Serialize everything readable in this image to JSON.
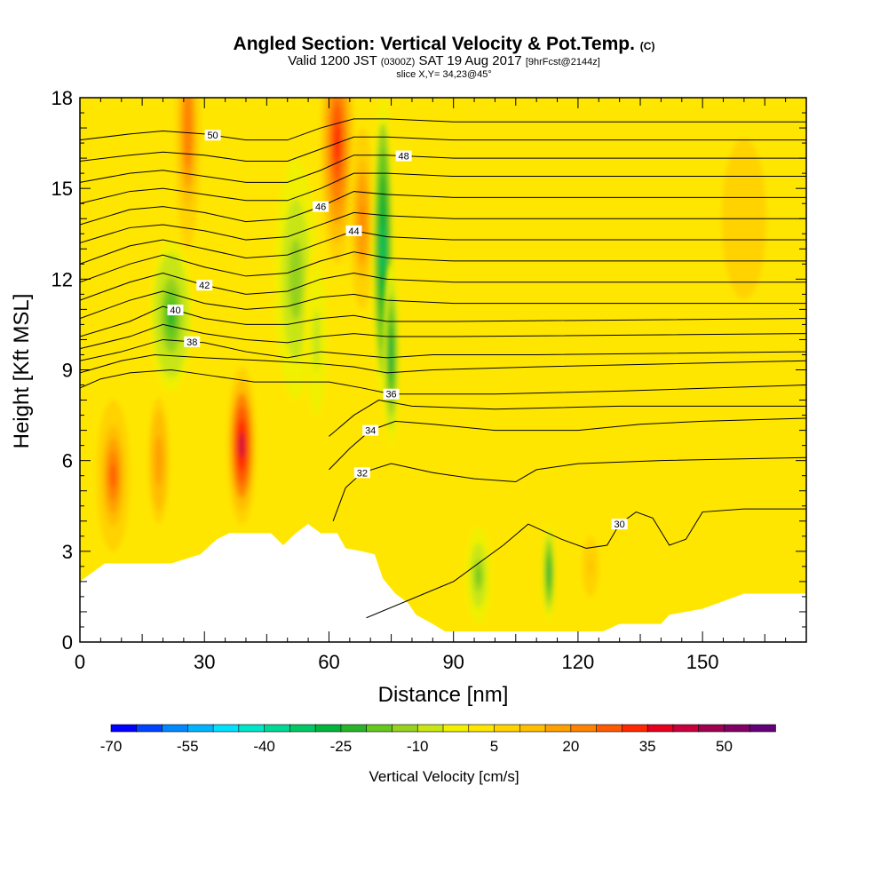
{
  "title": {
    "main": "Angled Section: Vertical Velocity & Pot.Temp.",
    "main_suffix": "(C)",
    "valid_prefix": "Valid 1200 JST",
    "valid_utc": "(0300Z)",
    "valid_date": "SAT 19 Aug 2017",
    "forecast": "[9hrFcst@2144z]",
    "slice": "slice X,Y= 34,23@45°"
  },
  "chart_data": {
    "type": "heatmap",
    "xlabel": "Distance [nm]",
    "ylabel": "Height [Kft MSL]",
    "xlim": [
      0,
      175
    ],
    "ylim": [
      0,
      18
    ],
    "xticks": [
      0,
      30,
      60,
      90,
      120,
      150
    ],
    "yticks": [
      0,
      3,
      6,
      9,
      12,
      15,
      18
    ],
    "colorbar": {
      "label": "Vertical Velocity [cm/s]",
      "tick_values": [
        -70,
        -55,
        -40,
        -25,
        -10,
        5,
        20,
        35,
        50
      ],
      "tick_labels": [
        "-70",
        "-55",
        "-40",
        "-25",
        "-10",
        "5",
        "20",
        "35",
        "50"
      ],
      "bins": [
        -70,
        -65,
        -60,
        -55,
        -50,
        -45,
        -40,
        -35,
        -30,
        -25,
        -20,
        -15,
        -10,
        -5,
        0,
        5,
        10,
        15,
        20,
        25,
        30,
        35,
        40,
        45,
        50,
        55
      ],
      "colors": [
        "#0000ff",
        "#0044ff",
        "#0088ff",
        "#00b4ff",
        "#00e0ff",
        "#00e6c8",
        "#00d896",
        "#00c864",
        "#00b43c",
        "#28b428",
        "#64c81e",
        "#96d21e",
        "#c8e614",
        "#f0f000",
        "#ffe600",
        "#ffd200",
        "#ffbe00",
        "#ffa000",
        "#ff8200",
        "#ff5a00",
        "#ff2800",
        "#e6001e",
        "#c8003c",
        "#a00050",
        "#820064",
        "#640078"
      ]
    },
    "background_value": 2,
    "velocity_cells": [
      {
        "x": 8,
        "y": 5.5,
        "sx": 4,
        "sy": 2.5,
        "v": 25
      },
      {
        "x": 19,
        "y": 6,
        "sx": 3,
        "sy": 2.5,
        "v": 18
      },
      {
        "x": 22,
        "y": 10.8,
        "sx": 5,
        "sy": 2.5,
        "v": -22
      },
      {
        "x": 26,
        "y": 17,
        "sx": 3,
        "sy": 4,
        "v": 24
      },
      {
        "x": 39,
        "y": 6.5,
        "sx": 3.5,
        "sy": 2.6,
        "v": 40
      },
      {
        "x": 52,
        "y": 12,
        "sx": 5,
        "sy": 4,
        "v": -14
      },
      {
        "x": 57,
        "y": 10,
        "sx": 3,
        "sy": 3,
        "v": -8
      },
      {
        "x": 62,
        "y": 16.5,
        "sx": 4,
        "sy": 4,
        "v": 34
      },
      {
        "x": 68,
        "y": 14,
        "sx": 3,
        "sy": 3,
        "v": 22
      },
      {
        "x": 73,
        "y": 13,
        "sx": 2.5,
        "sy": 5,
        "v": -35
      },
      {
        "x": 75,
        "y": 9.5,
        "sx": 2,
        "sy": 3,
        "v": -26
      },
      {
        "x": 96,
        "y": 2.2,
        "sx": 3,
        "sy": 1.6,
        "v": -16
      },
      {
        "x": 113,
        "y": 2.3,
        "sx": 1.5,
        "sy": 1.6,
        "v": -30
      },
      {
        "x": 123,
        "y": 2.5,
        "sx": 3,
        "sy": 1.5,
        "v": 10
      },
      {
        "x": 160,
        "y": 14,
        "sx": 8,
        "sy": 4,
        "v": 9
      }
    ],
    "terrain_kft": [
      [
        0,
        2.0
      ],
      [
        3,
        2.3
      ],
      [
        6,
        2.6
      ],
      [
        14,
        2.6
      ],
      [
        22,
        2.6
      ],
      [
        29,
        2.9
      ],
      [
        33,
        3.4
      ],
      [
        36,
        3.6
      ],
      [
        46,
        3.6
      ],
      [
        49,
        3.2
      ],
      [
        52,
        3.6
      ],
      [
        55,
        3.9
      ],
      [
        58,
        3.6
      ],
      [
        62,
        3.6
      ],
      [
        64,
        3.1
      ],
      [
        68,
        3.0
      ],
      [
        71,
        2.9
      ],
      [
        73,
        2.1
      ],
      [
        76,
        1.6
      ],
      [
        79,
        1.3
      ],
      [
        81,
        0.9
      ],
      [
        85,
        0.6
      ],
      [
        88,
        0.35
      ],
      [
        96,
        0.35
      ],
      [
        110,
        0.35
      ],
      [
        126,
        0.35
      ],
      [
        130,
        0.6
      ],
      [
        140,
        0.6
      ],
      [
        142,
        0.9
      ],
      [
        150,
        1.1
      ],
      [
        154,
        1.3
      ],
      [
        160,
        1.6
      ],
      [
        175,
        1.6
      ]
    ],
    "theta_contours": [
      {
        "level": 30,
        "label": "30",
        "label_x": 130,
        "points": [
          [
            69,
            0.8
          ],
          [
            90,
            2.0
          ],
          [
            102,
            3.2
          ],
          [
            108,
            3.9
          ],
          [
            116,
            3.4
          ],
          [
            122,
            3.1
          ],
          [
            127,
            3.2
          ],
          [
            130,
            3.9
          ],
          [
            134,
            4.3
          ],
          [
            138,
            4.1
          ],
          [
            142,
            3.2
          ],
          [
            146,
            3.4
          ],
          [
            150,
            4.3
          ],
          [
            160,
            4.4
          ],
          [
            175,
            4.4
          ]
        ]
      },
      {
        "level": 32,
        "label": "32",
        "label_x": 68,
        "points": [
          [
            61,
            4.0
          ],
          [
            64,
            5.1
          ],
          [
            68,
            5.6
          ],
          [
            75,
            5.9
          ],
          [
            85,
            5.6
          ],
          [
            95,
            5.4
          ],
          [
            105,
            5.3
          ],
          [
            110,
            5.7
          ],
          [
            120,
            5.9
          ],
          [
            140,
            6.0
          ],
          [
            175,
            6.1
          ]
        ]
      },
      {
        "level": 34,
        "label": "34",
        "label_x": 70,
        "points": [
          [
            60,
            5.7
          ],
          [
            65,
            6.4
          ],
          [
            70,
            7.0
          ],
          [
            76,
            7.3
          ],
          [
            85,
            7.2
          ],
          [
            100,
            7.0
          ],
          [
            120,
            7.0
          ],
          [
            135,
            7.2
          ],
          [
            150,
            7.3
          ],
          [
            175,
            7.4
          ]
        ]
      },
      {
        "level": 35,
        "label": "",
        "label_x": 0,
        "points": [
          [
            60,
            6.8
          ],
          [
            66,
            7.5
          ],
          [
            72,
            8.0
          ],
          [
            80,
            7.8
          ],
          [
            100,
            7.7
          ],
          [
            130,
            7.8
          ],
          [
            175,
            7.8
          ]
        ]
      },
      {
        "level": 36,
        "label": "36",
        "label_x": 75,
        "points": [
          [
            0,
            8.4
          ],
          [
            5,
            8.7
          ],
          [
            12,
            8.9
          ],
          [
            22,
            9.0
          ],
          [
            32,
            8.8
          ],
          [
            42,
            8.6
          ],
          [
            52,
            8.6
          ],
          [
            60,
            8.6
          ],
          [
            68,
            8.4
          ],
          [
            75,
            8.2
          ],
          [
            85,
            8.2
          ],
          [
            100,
            8.2
          ],
          [
            130,
            8.3
          ],
          [
            175,
            8.5
          ]
        ]
      },
      {
        "level": 37,
        "label": "",
        "label_x": 0,
        "points": [
          [
            0,
            8.9
          ],
          [
            10,
            9.3
          ],
          [
            18,
            9.5
          ],
          [
            30,
            9.4
          ],
          [
            45,
            9.3
          ],
          [
            58,
            9.2
          ],
          [
            66,
            9.1
          ],
          [
            74,
            8.9
          ],
          [
            85,
            9.0
          ],
          [
            110,
            9.1
          ],
          [
            175,
            9.3
          ]
        ]
      },
      {
        "level": 38,
        "label": "38",
        "label_x": 27,
        "points": [
          [
            0,
            9.3
          ],
          [
            10,
            9.6
          ],
          [
            20,
            10.0
          ],
          [
            30,
            9.9
          ],
          [
            40,
            9.6
          ],
          [
            50,
            9.4
          ],
          [
            58,
            9.6
          ],
          [
            66,
            9.5
          ],
          [
            74,
            9.4
          ],
          [
            85,
            9.5
          ],
          [
            110,
            9.5
          ],
          [
            175,
            9.6
          ]
        ]
      },
      {
        "level": 39,
        "label": "",
        "label_x": 0,
        "points": [
          [
            0,
            9.7
          ],
          [
            12,
            10.1
          ],
          [
            20,
            10.5
          ],
          [
            30,
            10.2
          ],
          [
            40,
            10.0
          ],
          [
            50,
            9.9
          ],
          [
            58,
            10.1
          ],
          [
            66,
            10.2
          ],
          [
            74,
            10.1
          ],
          [
            90,
            10.1
          ],
          [
            175,
            10.2
          ]
        ]
      },
      {
        "level": 40,
        "label": "40",
        "label_x": 23,
        "points": [
          [
            0,
            10.1
          ],
          [
            12,
            10.6
          ],
          [
            20,
            11.1
          ],
          [
            30,
            10.7
          ],
          [
            40,
            10.5
          ],
          [
            50,
            10.5
          ],
          [
            58,
            10.7
          ],
          [
            66,
            10.8
          ],
          [
            74,
            10.6
          ],
          [
            90,
            10.6
          ],
          [
            175,
            10.7
          ]
        ]
      },
      {
        "level": 41,
        "label": "",
        "label_x": 0,
        "points": [
          [
            0,
            10.7
          ],
          [
            12,
            11.3
          ],
          [
            20,
            11.6
          ],
          [
            30,
            11.2
          ],
          [
            40,
            11.0
          ],
          [
            50,
            11.1
          ],
          [
            58,
            11.4
          ],
          [
            66,
            11.5
          ],
          [
            74,
            11.3
          ],
          [
            90,
            11.2
          ],
          [
            175,
            11.2
          ]
        ]
      },
      {
        "level": 42,
        "label": "42",
        "label_x": 30,
        "points": [
          [
            0,
            11.3
          ],
          [
            12,
            11.9
          ],
          [
            20,
            12.2
          ],
          [
            30,
            11.8
          ],
          [
            40,
            11.5
          ],
          [
            50,
            11.6
          ],
          [
            58,
            12.0
          ],
          [
            66,
            12.2
          ],
          [
            74,
            12.0
          ],
          [
            90,
            11.9
          ],
          [
            175,
            11.9
          ]
        ]
      },
      {
        "level": 43,
        "label": "",
        "label_x": 0,
        "points": [
          [
            0,
            11.9
          ],
          [
            12,
            12.5
          ],
          [
            20,
            12.8
          ],
          [
            30,
            12.4
          ],
          [
            40,
            12.1
          ],
          [
            50,
            12.2
          ],
          [
            58,
            12.6
          ],
          [
            66,
            12.9
          ],
          [
            74,
            12.7
          ],
          [
            90,
            12.6
          ],
          [
            175,
            12.6
          ]
        ]
      },
      {
        "level": 44,
        "label": "44",
        "label_x": 66,
        "points": [
          [
            0,
            12.5
          ],
          [
            12,
            13.1
          ],
          [
            20,
            13.3
          ],
          [
            30,
            13.0
          ],
          [
            40,
            12.7
          ],
          [
            50,
            12.8
          ],
          [
            58,
            13.2
          ],
          [
            66,
            13.6
          ],
          [
            74,
            13.4
          ],
          [
            90,
            13.3
          ],
          [
            175,
            13.3
          ]
        ]
      },
      {
        "level": 45,
        "label": "",
        "label_x": 0,
        "points": [
          [
            0,
            13.2
          ],
          [
            12,
            13.7
          ],
          [
            20,
            13.8
          ],
          [
            30,
            13.6
          ],
          [
            40,
            13.3
          ],
          [
            50,
            13.4
          ],
          [
            58,
            13.8
          ],
          [
            66,
            14.2
          ],
          [
            74,
            14.1
          ],
          [
            90,
            14.0
          ],
          [
            175,
            14.0
          ]
        ]
      },
      {
        "level": 46,
        "label": "46",
        "label_x": 58,
        "points": [
          [
            0,
            13.8
          ],
          [
            12,
            14.3
          ],
          [
            20,
            14.4
          ],
          [
            30,
            14.2
          ],
          [
            40,
            13.9
          ],
          [
            50,
            14.0
          ],
          [
            58,
            14.4
          ],
          [
            66,
            14.9
          ],
          [
            74,
            14.8
          ],
          [
            90,
            14.7
          ],
          [
            175,
            14.7
          ]
        ]
      },
      {
        "level": 47,
        "label": "",
        "label_x": 0,
        "points": [
          [
            0,
            14.5
          ],
          [
            12,
            14.9
          ],
          [
            20,
            15.0
          ],
          [
            30,
            14.8
          ],
          [
            40,
            14.6
          ],
          [
            50,
            14.6
          ],
          [
            58,
            15.0
          ],
          [
            66,
            15.5
          ],
          [
            74,
            15.5
          ],
          [
            90,
            15.4
          ],
          [
            175,
            15.4
          ]
        ]
      },
      {
        "level": 48,
        "label": "48",
        "label_x": 78,
        "points": [
          [
            0,
            15.2
          ],
          [
            12,
            15.5
          ],
          [
            20,
            15.6
          ],
          [
            30,
            15.4
          ],
          [
            40,
            15.2
          ],
          [
            50,
            15.2
          ],
          [
            58,
            15.6
          ],
          [
            66,
            16.1
          ],
          [
            74,
            16.1
          ],
          [
            90,
            16.0
          ],
          [
            175,
            16.0
          ]
        ]
      },
      {
        "level": 49,
        "label": "",
        "label_x": 0,
        "points": [
          [
            0,
            15.9
          ],
          [
            12,
            16.1
          ],
          [
            20,
            16.2
          ],
          [
            30,
            16.1
          ],
          [
            40,
            15.9
          ],
          [
            50,
            15.9
          ],
          [
            58,
            16.3
          ],
          [
            66,
            16.7
          ],
          [
            74,
            16.7
          ],
          [
            90,
            16.6
          ],
          [
            175,
            16.6
          ]
        ]
      },
      {
        "level": 50,
        "label": "50",
        "label_x": 32,
        "points": [
          [
            0,
            16.6
          ],
          [
            12,
            16.8
          ],
          [
            20,
            16.9
          ],
          [
            30,
            16.8
          ],
          [
            40,
            16.6
          ],
          [
            50,
            16.6
          ],
          [
            58,
            17.0
          ],
          [
            66,
            17.3
          ],
          [
            74,
            17.3
          ],
          [
            90,
            17.2
          ],
          [
            175,
            17.2
          ]
        ]
      }
    ]
  }
}
